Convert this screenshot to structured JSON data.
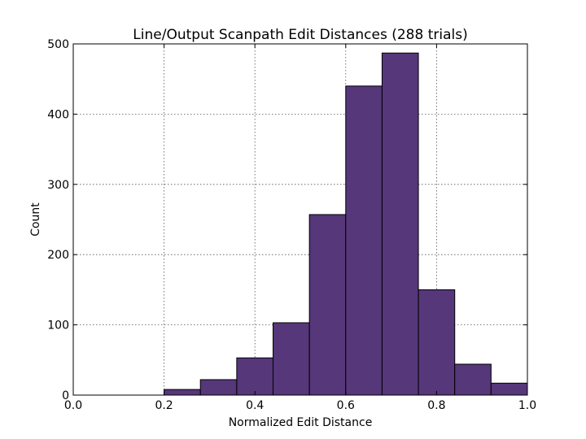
{
  "chart_data": {
    "type": "bar",
    "title": "Line/Output Scanpath Edit Distances (288 trials)",
    "xlabel": "Normalized Edit Distance",
    "ylabel": "Count",
    "xlim": [
      0.0,
      1.0
    ],
    "ylim": [
      0,
      500
    ],
    "xticks": [
      "0.0",
      "0.2",
      "0.4",
      "0.6",
      "0.8",
      "1.0"
    ],
    "yticks": [
      "0",
      "100",
      "200",
      "300",
      "400",
      "500"
    ],
    "grid": true,
    "bar_color": "#55377a",
    "bins": [
      {
        "x0": 0.2,
        "x1": 0.28,
        "value": 8
      },
      {
        "x0": 0.28,
        "x1": 0.36,
        "value": 22
      },
      {
        "x0": 0.36,
        "x1": 0.44,
        "value": 53
      },
      {
        "x0": 0.44,
        "x1": 0.52,
        "value": 103
      },
      {
        "x0": 0.52,
        "x1": 0.6,
        "value": 257
      },
      {
        "x0": 0.6,
        "x1": 0.68,
        "value": 440
      },
      {
        "x0": 0.68,
        "x1": 0.76,
        "value": 487
      },
      {
        "x0": 0.76,
        "x1": 0.84,
        "value": 150
      },
      {
        "x0": 0.84,
        "x1": 0.92,
        "value": 44
      },
      {
        "x0": 0.92,
        "x1": 1.0,
        "value": 17
      }
    ]
  }
}
